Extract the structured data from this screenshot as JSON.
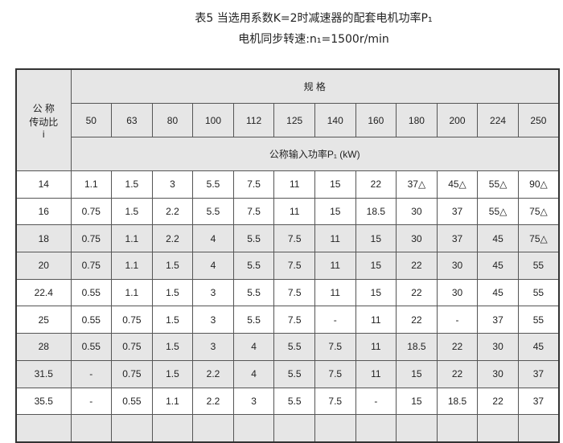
{
  "title": "表5  当选用系数K=2时减速器的配套电机功率P₁",
  "subtitle": "电机同步转速:n₁=1500r/min",
  "table": {
    "ratio_header": [
      "公 称",
      "传动比",
      "i"
    ],
    "spec_header": "规  格",
    "unit_header": "公称输入功率P₁ (kW)",
    "sizes": [
      "50",
      "63",
      "80",
      "100",
      "112",
      "125",
      "140",
      "160",
      "180",
      "200",
      "224",
      "250"
    ],
    "rows": [
      {
        "ratio": "14",
        "values": [
          "1.1",
          "1.5",
          "3",
          "5.5",
          "7.5",
          "11",
          "15",
          "22",
          "37△",
          "45△",
          "55△",
          "90△"
        ]
      },
      {
        "ratio": "16",
        "values": [
          "0.75",
          "1.5",
          "2.2",
          "5.5",
          "7.5",
          "11",
          "15",
          "18.5",
          "30",
          "37",
          "55△",
          "75△"
        ]
      },
      {
        "ratio": "18",
        "values": [
          "0.75",
          "1.1",
          "2.2",
          "4",
          "5.5",
          "7.5",
          "11",
          "15",
          "30",
          "37",
          "45",
          "75△"
        ]
      },
      {
        "ratio": "20",
        "values": [
          "0.75",
          "1.1",
          "1.5",
          "4",
          "5.5",
          "7.5",
          "11",
          "15",
          "22",
          "30",
          "45",
          "55"
        ]
      },
      {
        "ratio": "22.4",
        "values": [
          "0.55",
          "1.1",
          "1.5",
          "3",
          "5.5",
          "7.5",
          "11",
          "15",
          "22",
          "30",
          "45",
          "55"
        ]
      },
      {
        "ratio": "25",
        "values": [
          "0.55",
          "0.75",
          "1.5",
          "3",
          "5.5",
          "7.5",
          "-",
          "11",
          "22",
          "-",
          "37",
          "55"
        ]
      },
      {
        "ratio": "28",
        "values": [
          "0.55",
          "0.75",
          "1.5",
          "3",
          "4",
          "5.5",
          "7.5",
          "11",
          "18.5",
          "22",
          "30",
          "45"
        ]
      },
      {
        "ratio": "31.5",
        "values": [
          "-",
          "0.75",
          "1.5",
          "2.2",
          "4",
          "5.5",
          "7.5",
          "11",
          "15",
          "22",
          "30",
          "37"
        ]
      },
      {
        "ratio": "35.5",
        "values": [
          "-",
          "0.55",
          "1.1",
          "2.2",
          "3",
          "5.5",
          "7.5",
          "-",
          "15",
          "18.5",
          "22",
          "37"
        ]
      }
    ]
  }
}
